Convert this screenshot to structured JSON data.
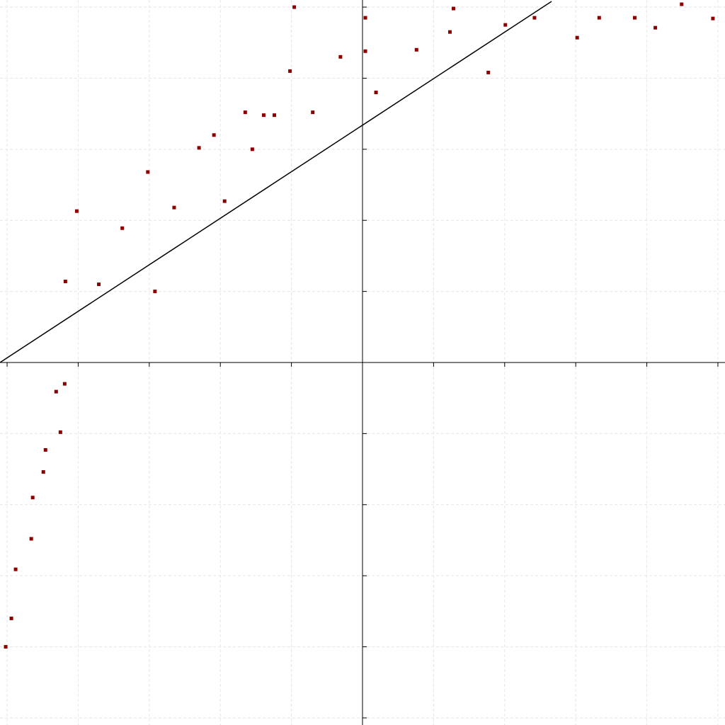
{
  "chart_data": {
    "type": "scatter",
    "title": "",
    "xlabel": "",
    "ylabel": "",
    "xlim": [
      -5.1,
      5.1
    ],
    "ylim": [
      -5.1,
      5.1
    ],
    "grid": true,
    "legend": "none",
    "colors": {
      "points": "#8b0000",
      "line": "#000000",
      "axis": "#000000",
      "grid": "#e6e6e6"
    },
    "series": [
      {
        "x": [
          -5.02,
          -4.94,
          -4.88,
          -4.66,
          -4.64,
          -4.49,
          -4.46,
          -4.31,
          -4.25,
          -4.19,
          -4.18,
          -4.02,
          -3.71,
          -3.38,
          -3.02,
          -2.92,
          -2.65,
          -2.3,
          -2.09,
          -1.94,
          -1.65,
          -1.55,
          -1.39,
          -1.24,
          -1.02,
          -0.96,
          -0.7,
          -0.31,
          0.04,
          0.04,
          0.19,
          0.76,
          1.23,
          1.28,
          1.77,
          2.01,
          2.42,
          3.02,
          3.33,
          3.83,
          4.12,
          4.49,
          4.93
        ],
        "y": [
          -4.0,
          -3.6,
          -2.91,
          -2.48,
          -1.9,
          -1.54,
          -1.23,
          -0.41,
          -0.98,
          -0.3,
          1.14,
          2.13,
          1.1,
          1.89,
          2.68,
          1.0,
          2.18,
          3.02,
          3.2,
          2.27,
          3.52,
          3.0,
          3.48,
          3.48,
          4.1,
          5.0,
          3.52,
          4.3,
          4.85,
          4.38,
          3.8,
          4.4,
          4.65,
          4.98,
          4.08,
          4.75,
          4.85,
          4.57,
          4.85,
          4.85,
          4.71,
          5.04,
          4.84
        ]
      }
    ],
    "fit_line": {
      "x": [
        -5.1,
        2.66
      ],
      "y": [
        0.0,
        5.08
      ]
    }
  }
}
